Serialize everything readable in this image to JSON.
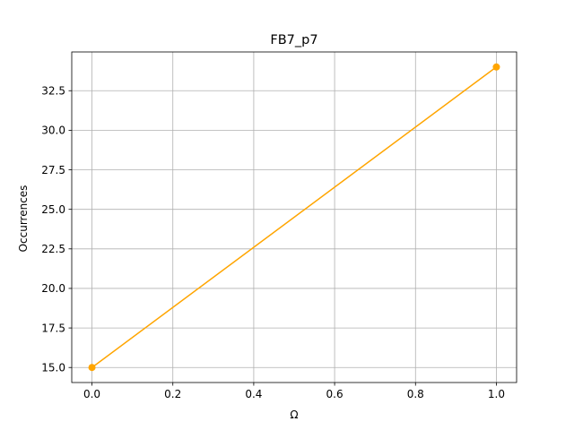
{
  "chart_data": {
    "type": "line",
    "title": "FB7_p7",
    "xlabel": "Ω",
    "ylabel": "Occurrences",
    "xlim": [
      -0.05,
      1.05
    ],
    "ylim": [
      14.05,
      34.95
    ],
    "xticks": [
      0.0,
      0.2,
      0.4,
      0.6,
      0.8,
      1.0
    ],
    "xtick_labels": [
      "0.0",
      "0.2",
      "0.4",
      "0.6",
      "0.8",
      "1.0"
    ],
    "yticks": [
      15.0,
      17.5,
      20.0,
      22.5,
      25.0,
      27.5,
      30.0,
      32.5
    ],
    "ytick_labels": [
      "15.0",
      "17.5",
      "20.0",
      "22.5",
      "25.0",
      "27.5",
      "30.0",
      "32.5"
    ],
    "grid": true,
    "series": [
      {
        "x": [
          0,
          1
        ],
        "values": [
          15,
          34
        ],
        "color": "#ffa500",
        "marker": "circle"
      }
    ]
  }
}
